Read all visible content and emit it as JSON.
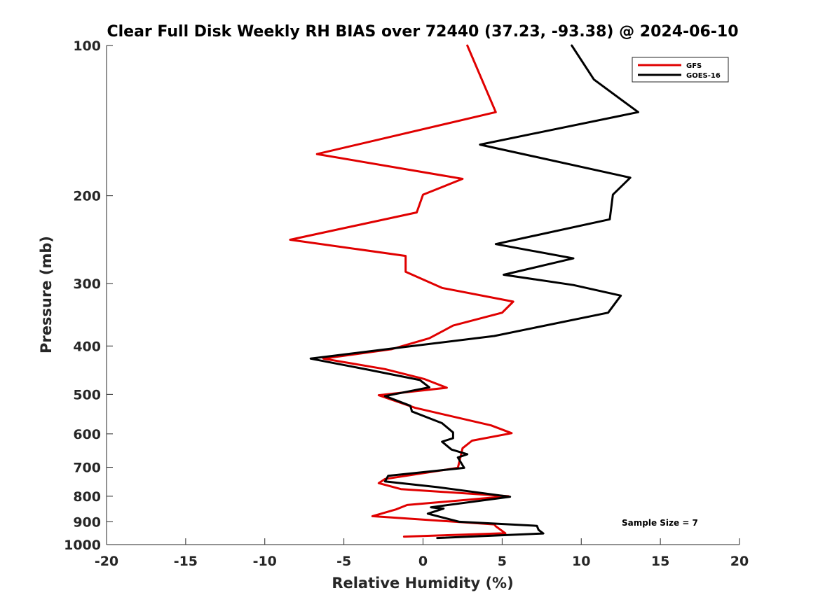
{
  "chart_data": {
    "type": "line",
    "title": "Clear Full Disk Weekly RH BIAS over 72440 (37.23, -93.38) @ 2024-06-10",
    "xlabel": "Relative Humidity (%)",
    "ylabel": "Pressure (mb)",
    "xlim": [
      -20,
      20
    ],
    "ylim": [
      100,
      1000
    ],
    "y_scale": "log",
    "y_reversed": true,
    "x_ticks": [
      -20,
      -15,
      -10,
      -5,
      0,
      5,
      10,
      15,
      20
    ],
    "y_ticks": [
      100,
      200,
      300,
      400,
      500,
      600,
      700,
      800,
      900,
      1000
    ],
    "grid": false,
    "legend_position": "top-right",
    "annotation": "Sample Size = 7",
    "series": [
      {
        "name": "GFS",
        "color": "#e00000",
        "points": [
          [
            2.8,
            100
          ],
          [
            4.6,
            136
          ],
          [
            -6.7,
            165
          ],
          [
            2.5,
            185
          ],
          [
            0,
            199
          ],
          [
            -0.4,
            216
          ],
          [
            -8.4,
            245
          ],
          [
            -1.1,
            264
          ],
          [
            -1.1,
            284
          ],
          [
            1.2,
            306
          ],
          [
            5.7,
            326
          ],
          [
            5,
            343
          ],
          [
            1.9,
            364
          ],
          [
            0.4,
            386
          ],
          [
            -2,
            406
          ],
          [
            -6.3,
            424
          ],
          [
            -2.4,
            445
          ],
          [
            0.1,
            466
          ],
          [
            1.5,
            485
          ],
          [
            -2.8,
            502
          ],
          [
            -0.5,
            532
          ],
          [
            4.3,
            577
          ],
          [
            5.6,
            598
          ],
          [
            3.1,
            619
          ],
          [
            2.5,
            641
          ],
          [
            2.4,
            661
          ],
          [
            2.2,
            702
          ],
          [
            -2.4,
            739
          ],
          [
            -2.8,
            753
          ],
          [
            -1.4,
            774
          ],
          [
            5.4,
            800
          ],
          [
            -1,
            833
          ],
          [
            -1.7,
            850
          ],
          [
            -3.2,
            877
          ],
          [
            4.5,
            911
          ],
          [
            4.6,
            919
          ],
          [
            5.2,
            949
          ],
          [
            -1.2,
            964
          ]
        ]
      },
      {
        "name": "GOES-16",
        "color": "#000000",
        "points": [
          [
            9.4,
            100
          ],
          [
            10.8,
            117
          ],
          [
            13.6,
            136
          ],
          [
            3.6,
            158
          ],
          [
            13.1,
            184
          ],
          [
            12,
            199
          ],
          [
            11.8,
            223
          ],
          [
            4.6,
            250
          ],
          [
            9.5,
            267
          ],
          [
            5.1,
            288
          ],
          [
            9.5,
            302
          ],
          [
            12.5,
            317
          ],
          [
            11.7,
            343
          ],
          [
            4.5,
            382
          ],
          [
            -1.5,
            403
          ],
          [
            -7.1,
            424
          ],
          [
            -3.5,
            446
          ],
          [
            -0.2,
            468
          ],
          [
            0.4,
            484
          ],
          [
            -2.4,
            504
          ],
          [
            -0.8,
            527
          ],
          [
            -0.7,
            541
          ],
          [
            1.2,
            571
          ],
          [
            1.9,
            596
          ],
          [
            1.9,
            612
          ],
          [
            1.2,
            622
          ],
          [
            1.8,
            645
          ],
          [
            2.8,
            659
          ],
          [
            2.2,
            669
          ],
          [
            2.6,
            702
          ],
          [
            -2.2,
            728
          ],
          [
            -2.4,
            747
          ],
          [
            0.9,
            767
          ],
          [
            5.5,
            802
          ],
          [
            0.5,
            842
          ],
          [
            1.3,
            847
          ],
          [
            0.3,
            867
          ],
          [
            2.3,
            900
          ],
          [
            7.2,
            917
          ],
          [
            7.3,
            934
          ],
          [
            7.6,
            950
          ],
          [
            0.9,
            970
          ]
        ]
      }
    ]
  }
}
